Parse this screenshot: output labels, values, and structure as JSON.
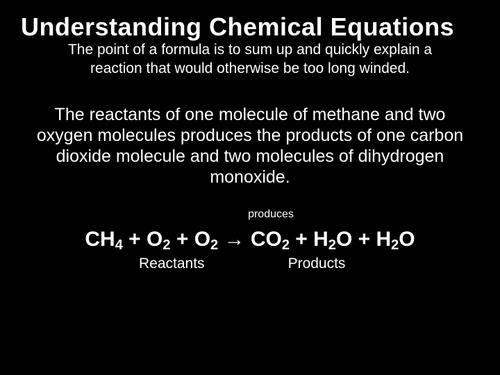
{
  "title": "Understanding  Chemical Equations",
  "intro": "The point of a formula is to sum up and quickly explain a reaction that would otherwise be too long winded.",
  "body": "The reactants of one molecule of methane and two oxygen molecules produces the products of one carbon dioxide molecule and two molecules of dihydrogen monoxide.",
  "produces_label": "produces",
  "equation": {
    "s1": "CH",
    "sub1": "4",
    "p1": " + O",
    "sub2": "2",
    "p2": " + O",
    "sub3": "2",
    "arrow": " → ",
    "s2": "CO",
    "sub4": "2",
    "p3": " + H",
    "sub5": "2",
    "s3": "O + H",
    "sub6": "2",
    "s4": "O"
  },
  "reactants_label": "Reactants",
  "products_label": "Products",
  "colors": {
    "background": "#000000",
    "text": "#ffffff"
  }
}
